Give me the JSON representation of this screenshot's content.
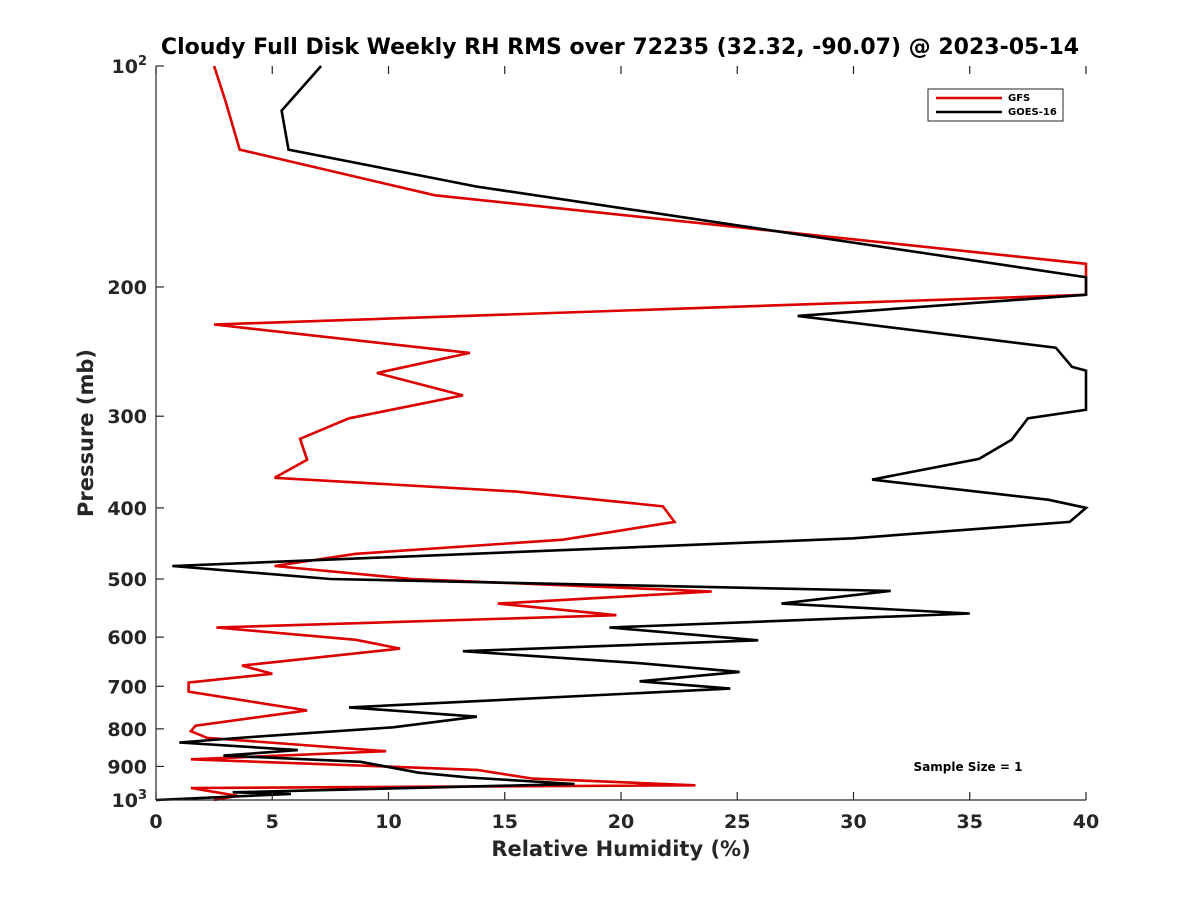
{
  "chart_data": {
    "type": "line",
    "title": "Cloudy Full Disk Weekly RH RMS over 72235 (32.32, -90.07) @ 2023-05-14",
    "xlabel": "Relative Humidity (%)",
    "ylabel": "Pressure (mb)",
    "xlim": [
      0,
      40
    ],
    "ylim": [
      100,
      1000
    ],
    "yscale": "log",
    "y_reversed": true,
    "grid": false,
    "legend_position": "top-right",
    "x_ticks": [
      "0",
      "5",
      "10",
      "15",
      "20",
      "25",
      "30",
      "35",
      "40"
    ],
    "y_ticks": [
      {
        "value": 100,
        "base": "10",
        "exp": "2"
      },
      {
        "value": 200,
        "label": "200"
      },
      {
        "value": 300,
        "label": "300"
      },
      {
        "value": 400,
        "label": "400"
      },
      {
        "value": 500,
        "label": "500"
      },
      {
        "value": 600,
        "label": "600"
      },
      {
        "value": 700,
        "label": "700"
      },
      {
        "value": 800,
        "label": "800"
      },
      {
        "value": 900,
        "label": "900"
      },
      {
        "value": 1000,
        "base": "10",
        "exp": "3"
      }
    ],
    "annotation": "Sample Size = 1",
    "series": [
      {
        "name": "GFS",
        "color": "#dd0000",
        "points": [
          [
            2.5,
            100
          ],
          [
            3.0,
            112
          ],
          [
            3.6,
            130
          ],
          [
            12.0,
            150
          ],
          [
            40.0,
            186
          ],
          [
            40.0,
            205
          ],
          [
            2.5,
            225
          ],
          [
            13.5,
            246
          ],
          [
            9.5,
            262
          ],
          [
            13.2,
            281
          ],
          [
            8.3,
            302
          ],
          [
            6.2,
            322
          ],
          [
            6.5,
            344
          ],
          [
            5.1,
            364
          ],
          [
            15.5,
            380
          ],
          [
            21.8,
            398
          ],
          [
            22.3,
            418
          ],
          [
            17.5,
            442
          ],
          [
            8.6,
            462
          ],
          [
            5.1,
            480
          ],
          [
            11.0,
            500
          ],
          [
            23.9,
            520
          ],
          [
            14.7,
            540
          ],
          [
            19.8,
            560
          ],
          [
            2.6,
            582
          ],
          [
            8.6,
            605
          ],
          [
            10.5,
            622
          ],
          [
            3.7,
            656
          ],
          [
            5.0,
            673
          ],
          [
            1.4,
            692
          ],
          [
            1.4,
            712
          ],
          [
            6.5,
            755
          ],
          [
            1.7,
            792
          ],
          [
            1.5,
            806
          ],
          [
            2.2,
            823
          ],
          [
            9.9,
            858
          ],
          [
            1.5,
            880
          ],
          [
            13.8,
            910
          ],
          [
            16.2,
            935
          ],
          [
            23.2,
            955
          ],
          [
            1.5,
            963
          ],
          [
            3.5,
            987
          ],
          [
            2.5,
            1000
          ]
        ]
      },
      {
        "name": "GOES-16",
        "color": "#000000",
        "points": [
          [
            7.1,
            100
          ],
          [
            5.4,
            115
          ],
          [
            5.7,
            130
          ],
          [
            13.8,
            146
          ],
          [
            40.0,
            194
          ],
          [
            40.0,
            205
          ],
          [
            27.6,
            219
          ],
          [
            38.7,
            242
          ],
          [
            39.4,
            257
          ],
          [
            40.0,
            260
          ],
          [
            40.0,
            294
          ],
          [
            37.5,
            302
          ],
          [
            36.8,
            323
          ],
          [
            35.4,
            343
          ],
          [
            30.8,
            366
          ],
          [
            38.4,
            390
          ],
          [
            40.0,
            400
          ],
          [
            39.3,
            418
          ],
          [
            30.0,
            440
          ],
          [
            0.7,
            480
          ],
          [
            7.5,
            500
          ],
          [
            31.6,
            519
          ],
          [
            26.9,
            540
          ],
          [
            35.0,
            557
          ],
          [
            19.5,
            582
          ],
          [
            25.9,
            606
          ],
          [
            13.2,
            627
          ],
          [
            20.8,
            651
          ],
          [
            25.1,
            669
          ],
          [
            20.8,
            689
          ],
          [
            24.7,
            705
          ],
          [
            8.3,
            748
          ],
          [
            13.8,
            770
          ],
          [
            10.2,
            796
          ],
          [
            3.8,
            822
          ],
          [
            1.0,
            835
          ],
          [
            6.1,
            855
          ],
          [
            2.9,
            870
          ],
          [
            8.8,
            887
          ],
          [
            11.3,
            918
          ],
          [
            13.5,
            932
          ],
          [
            18.0,
            951
          ],
          [
            3.3,
            976
          ],
          [
            5.8,
            981
          ],
          [
            0.0,
            1000
          ]
        ]
      }
    ]
  }
}
